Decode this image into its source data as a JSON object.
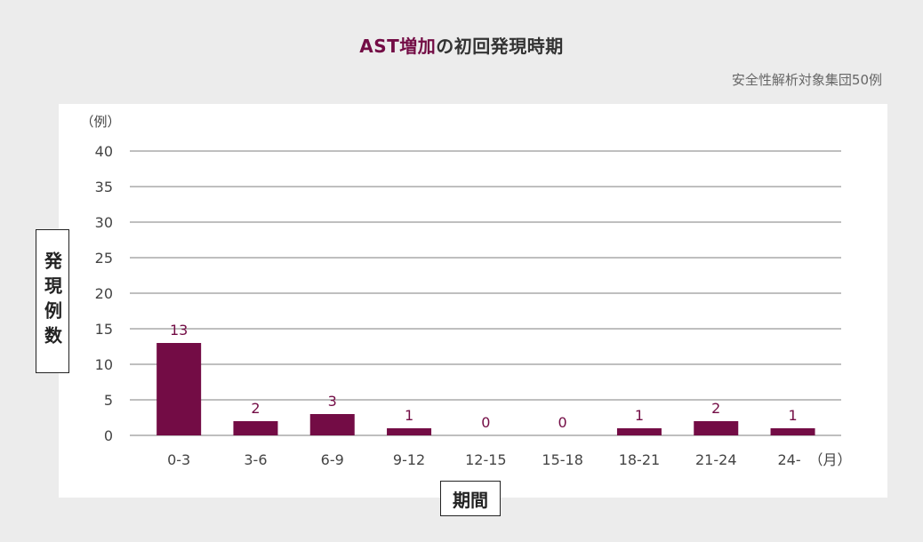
{
  "header": {
    "title_accent": "AST増加",
    "title_rest": "の初回発現時期",
    "population_note": "安全性解析対象集団50例"
  },
  "chart_data": {
    "type": "bar",
    "categories": [
      "0-3",
      "3-6",
      "6-9",
      "9-12",
      "12-15",
      "15-18",
      "18-21",
      "21-24",
      "24-"
    ],
    "values": [
      13,
      2,
      3,
      1,
      0,
      0,
      1,
      2,
      1
    ],
    "title": "AST増加の初回発現時期",
    "xlabel": "期間",
    "ylabel": "発現例数",
    "y_unit": "（例）",
    "x_unit": "（月）",
    "ylim": [
      0,
      40
    ],
    "yticks": [
      0,
      5,
      10,
      15,
      20,
      25,
      30,
      35,
      40
    ],
    "grid": true,
    "bar_color": "#730c45",
    "data_labels": true
  }
}
